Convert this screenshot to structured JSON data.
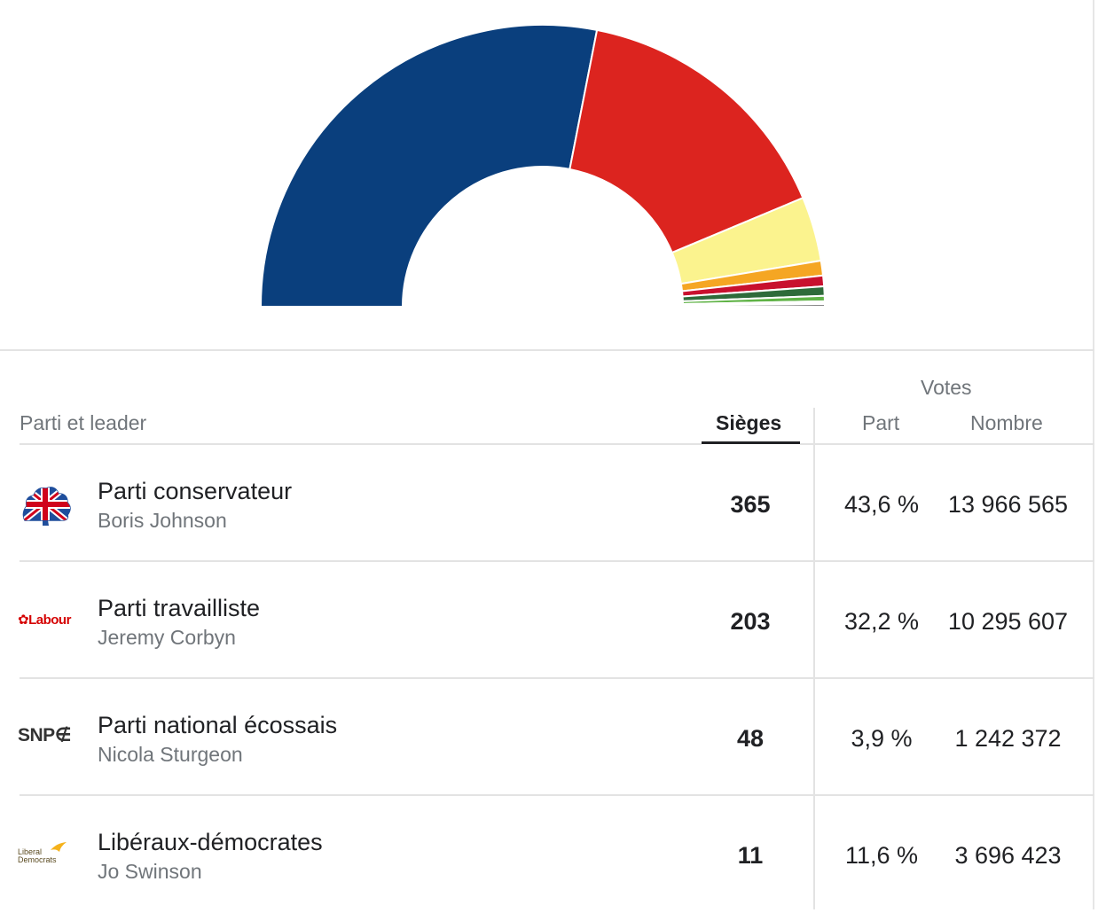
{
  "chart_data": {
    "type": "hemicycle",
    "total_seats": 650,
    "segments": [
      {
        "party": "Parti conservateur",
        "seats": 365,
        "color": "#0a3f7d"
      },
      {
        "party": "Parti travailliste",
        "seats": 203,
        "color": "#dc241f"
      },
      {
        "party": "Parti national écossais",
        "seats": 48,
        "color": "#fbf38e"
      },
      {
        "party": "Libéraux-démocrates",
        "seats": 11,
        "color": "#f5a623"
      },
      {
        "party": "",
        "seats": 8,
        "color": "#c8102e"
      },
      {
        "party": "",
        "seats": 7,
        "color": "#2e6b3a"
      },
      {
        "party": "",
        "seats": 4,
        "color": "#60b347"
      },
      {
        "party": "",
        "seats": 1,
        "color": "#b8d98d"
      },
      {
        "party": "",
        "seats": 1,
        "color": "#6aaf4a"
      },
      {
        "party": "",
        "seats": 2,
        "color": "#888888"
      }
    ]
  },
  "table": {
    "headers": {
      "votes_group": "Votes",
      "party_leader": "Parti et leader",
      "seats": "Sièges",
      "share": "Part",
      "count": "Nombre"
    },
    "rows": [
      {
        "party": "Parti conservateur",
        "leader": "Boris Johnson",
        "seats": "365",
        "share": "43,6 %",
        "count": "13 966 565",
        "logo": "conservative-logo"
      },
      {
        "party": "Parti travailliste",
        "leader": "Jeremy Corbyn",
        "seats": "203",
        "share": "32,2 %",
        "count": "10 295 607",
        "logo": "labour-logo",
        "logo_text": "Labour"
      },
      {
        "party": "Parti national écossais",
        "leader": "Nicola Sturgeon",
        "seats": "48",
        "share": "3,9 %",
        "count": "1 242 372",
        "logo": "snp-logo",
        "logo_text": "SNP"
      },
      {
        "party": "Libéraux-démocrates",
        "leader": "Jo Swinson",
        "seats": "11",
        "share": "11,6 %",
        "count": "3 696 423",
        "logo": "libdem-logo",
        "logo_text": "Liberal Democrats"
      }
    ]
  }
}
